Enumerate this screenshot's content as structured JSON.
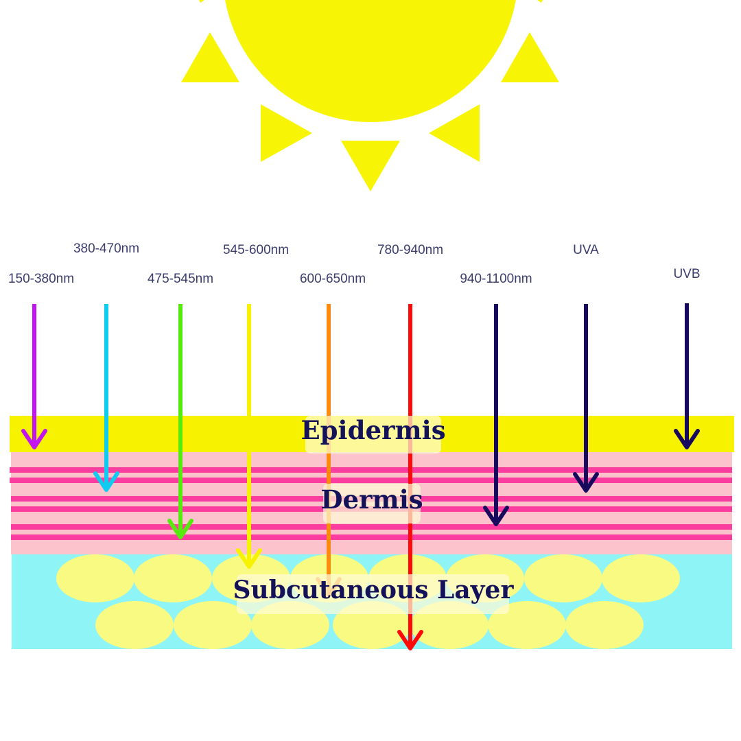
{
  "layers": {
    "epidermis": "Epidermis",
    "dermis": "Dermis",
    "subcutaneous": "Subcutaneous Layer"
  },
  "rays": [
    {
      "label": "150-380nm",
      "color": "#c215f2"
    },
    {
      "label": "380-470nm",
      "color": "#0ecbef"
    },
    {
      "label": "475-545nm",
      "color": "#56ea0f"
    },
    {
      "label": "545-600nm",
      "color": "#f7f200"
    },
    {
      "label": "600-650nm",
      "color": "#ff8a10"
    },
    {
      "label": "780-940nm",
      "color": "#ff0a0a"
    },
    {
      "label": "940-1100nm",
      "color": "#170a5e"
    },
    {
      "label": "UVA",
      "color": "#170a5e"
    },
    {
      "label": "UVB",
      "color": "#170a5e"
    }
  ],
  "colors": {
    "sun": "#f7f405",
    "epidermis": "#f7f200",
    "dermis": "#fcc3cd",
    "dermis_stripe": "#fb3d9f",
    "subcutaneous": "#8ff4f5",
    "fat_cell": "#f8fa82",
    "label_box": "#fffbd6"
  }
}
